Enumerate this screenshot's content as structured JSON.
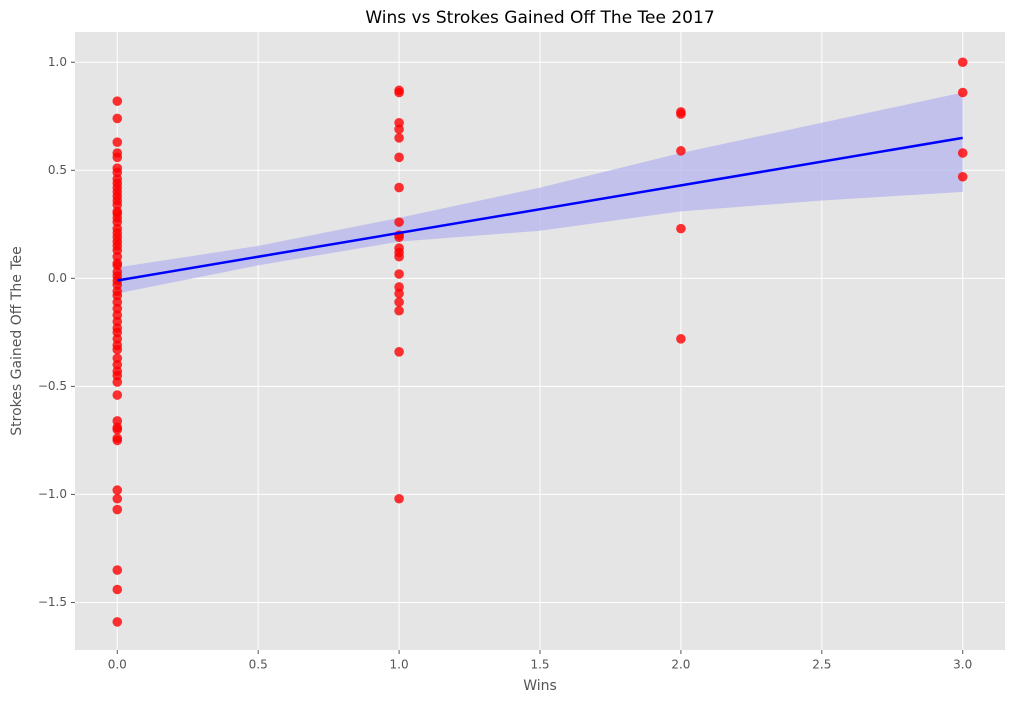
{
  "chart_data": {
    "type": "regplot",
    "title": "Wins vs Strokes Gained Off The Tee 2017",
    "x_label": "Wins",
    "y_label": "Strokes Gained Off The Tee",
    "x": [
      0,
      0,
      0,
      0,
      0,
      0,
      0,
      0,
      0,
      0,
      0,
      0,
      0,
      0,
      0,
      0,
      0,
      0,
      0,
      0,
      0,
      0,
      0,
      0,
      0,
      0,
      0,
      0,
      0,
      0,
      0,
      0,
      0,
      0,
      0,
      0,
      0,
      0,
      0,
      0,
      0,
      0,
      0,
      0,
      0,
      0,
      0,
      0,
      0,
      0,
      0,
      0,
      0,
      0,
      0,
      0,
      0,
      0,
      0,
      1,
      1,
      1,
      1,
      1,
      1,
      1,
      1,
      1,
      1,
      1,
      1,
      1,
      1,
      1,
      1,
      1,
      1,
      1,
      1,
      2,
      2,
      2,
      2,
      2,
      3,
      3,
      3,
      3
    ],
    "values": [
      0.82,
      0.74,
      0.63,
      0.58,
      0.56,
      0.51,
      0.49,
      0.46,
      0.44,
      0.42,
      0.4,
      0.38,
      0.36,
      0.34,
      0.31,
      0.3,
      0.28,
      0.26,
      0.23,
      0.21,
      0.19,
      0.17,
      0.15,
      0.13,
      0.1,
      0.07,
      0.06,
      0.03,
      0.01,
      -0.01,
      -0.03,
      -0.06,
      -0.08,
      -0.11,
      -0.14,
      -0.17,
      -0.2,
      -0.23,
      -0.25,
      -0.28,
      -0.31,
      -0.33,
      -0.37,
      -0.4,
      -0.43,
      -0.45,
      -0.48,
      -0.54,
      -0.66,
      -0.69,
      -0.7,
      -0.74,
      -0.75,
      -0.98,
      -1.02,
      -1.07,
      -1.35,
      -1.44,
      -1.59,
      0.87,
      0.86,
      0.72,
      0.69,
      0.65,
      0.56,
      0.42,
      0.26,
      0.2,
      0.19,
      0.14,
      0.12,
      0.1,
      0.02,
      -0.04,
      -0.07,
      -0.11,
      -0.15,
      -0.34,
      -1.02,
      0.77,
      0.76,
      0.59,
      0.23,
      -0.28,
      1.0,
      0.86,
      0.58,
      0.47
    ],
    "color": "#ff0000",
    "regression": {
      "x": [
        0,
        3
      ],
      "values": [
        -0.01,
        0.65
      ],
      "color": "#0000ff"
    },
    "band": {
      "x": [
        0,
        0.5,
        1,
        1.5,
        2,
        2.5,
        3
      ],
      "upper": [
        0.05,
        0.15,
        0.28,
        0.42,
        0.58,
        0.72,
        0.86
      ],
      "lower": [
        -0.07,
        0.06,
        0.17,
        0.22,
        0.31,
        0.36,
        0.4
      ],
      "color": "#b4b4ee"
    },
    "xlim": [
      -0.15,
      3.15
    ],
    "ylim": [
      -1.72,
      1.14
    ],
    "xticks": [
      {
        "value": 0,
        "label": "0.0"
      },
      {
        "value": 0.5,
        "label": "0.5"
      },
      {
        "value": 1,
        "label": "1.0"
      },
      {
        "value": 1.5,
        "label": "1.5"
      },
      {
        "value": 2,
        "label": "2.0"
      },
      {
        "value": 2.5,
        "label": "2.5"
      },
      {
        "value": 3,
        "label": "3.0"
      }
    ],
    "yticks": [
      {
        "value": -1.5,
        "label": "−1.5"
      },
      {
        "value": -1,
        "label": "−1.0"
      },
      {
        "value": -0.5,
        "label": "−0.5"
      },
      {
        "value": 0,
        "label": "0.0"
      },
      {
        "value": 0.5,
        "label": "0.5"
      },
      {
        "value": 1,
        "label": "1.0"
      }
    ],
    "grid": true
  }
}
